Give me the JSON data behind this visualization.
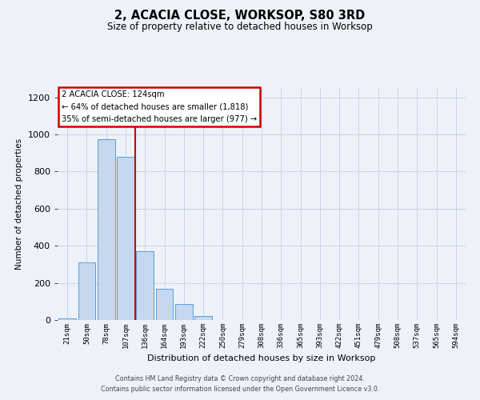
{
  "title": "2, ACACIA CLOSE, WORKSOP, S80 3RD",
  "subtitle": "Size of property relative to detached houses in Worksop",
  "xlabel": "Distribution of detached houses by size in Worksop",
  "ylabel": "Number of detached properties",
  "bin_labels": [
    "21sqm",
    "50sqm",
    "78sqm",
    "107sqm",
    "136sqm",
    "164sqm",
    "193sqm",
    "222sqm",
    "250sqm",
    "279sqm",
    "308sqm",
    "336sqm",
    "365sqm",
    "393sqm",
    "422sqm",
    "451sqm",
    "479sqm",
    "508sqm",
    "537sqm",
    "565sqm",
    "594sqm"
  ],
  "bar_values": [
    10,
    310,
    975,
    880,
    370,
    170,
    85,
    22,
    2,
    0,
    0,
    0,
    0,
    1,
    0,
    0,
    0,
    0,
    0,
    0,
    1
  ],
  "bar_color": "#c5d8f0",
  "bar_edge_color": "#5b9bd5",
  "ylim": [
    0,
    1250
  ],
  "yticks": [
    0,
    200,
    400,
    600,
    800,
    1000,
    1200
  ],
  "property_label": "2 ACACIA CLOSE: 124sqm",
  "annotation_line1": "← 64% of detached houses are smaller (1,818)",
  "annotation_line2": "35% of semi-detached houses are larger (977) →",
  "annotation_box_color": "#ffffff",
  "annotation_box_edge_color": "#cc0000",
  "red_line_x": 3.5,
  "footer_line1": "Contains HM Land Registry data © Crown copyright and database right 2024.",
  "footer_line2": "Contains public sector information licensed under the Open Government Licence v3.0.",
  "bg_color": "#eef2f8",
  "grid_color": "#c8d4e8"
}
